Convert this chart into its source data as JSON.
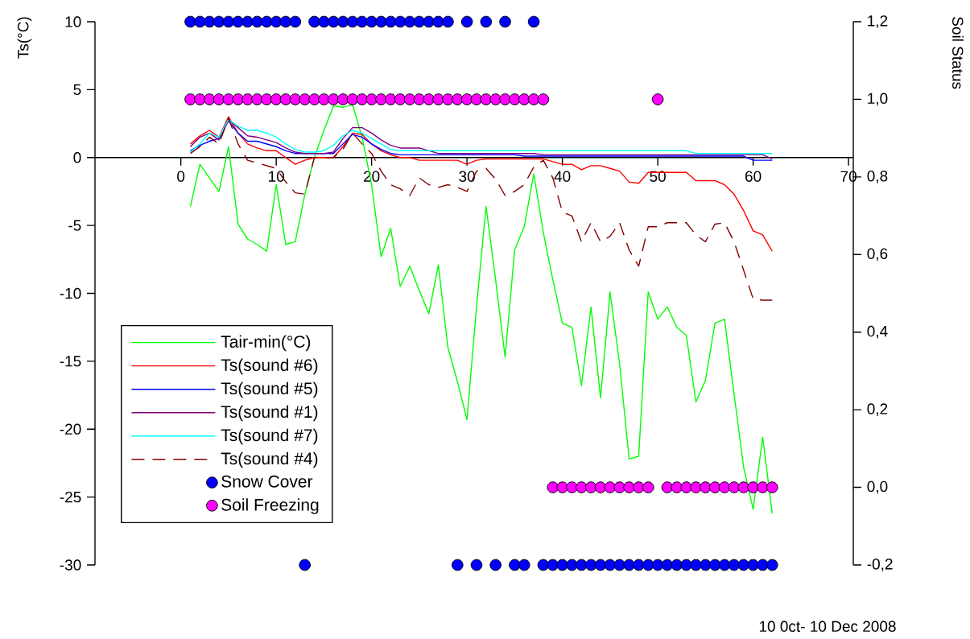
{
  "chart_data": {
    "type": "line",
    "ylabel": "Ts(°C)",
    "y2label": "Soil Status",
    "annotations": [
      "10 0ct- 10 Dec 2008"
    ],
    "x": [
      1,
      2,
      3,
      4,
      5,
      6,
      7,
      8,
      9,
      10,
      11,
      12,
      13,
      14,
      15,
      16,
      17,
      18,
      19,
      20,
      21,
      22,
      23,
      24,
      25,
      26,
      27,
      28,
      29,
      30,
      31,
      32,
      33,
      34,
      35,
      36,
      37,
      38,
      39,
      40,
      41,
      42,
      43,
      44,
      45,
      46,
      47,
      48,
      49,
      50,
      51,
      52,
      53,
      54,
      55,
      56,
      57,
      58,
      59,
      60,
      61,
      62
    ],
    "xlim": [
      -9,
      70.5
    ],
    "xticks": [
      0,
      10,
      20,
      30,
      40,
      50,
      60,
      70
    ],
    "ylim": [
      -30,
      10
    ],
    "yticks": [
      -30,
      -25,
      -20,
      -15,
      -10,
      -5,
      0,
      5,
      10
    ],
    "y2lim": [
      -0.2,
      1.2
    ],
    "y2ticks": [
      {
        "value": -0.2,
        "label": "-0,2"
      },
      {
        "value": 0,
        "label": "0,0"
      },
      {
        "value": 0.2,
        "label": "0,2"
      },
      {
        "value": 0.4,
        "label": "0,4"
      },
      {
        "value": 0.6,
        "label": "0,6"
      },
      {
        "value": 0.8,
        "label": "0,8"
      },
      {
        "value": 1.0,
        "label": "1,0"
      },
      {
        "value": 1.2,
        "label": "1,2"
      }
    ],
    "legend": "bottom left",
    "series": [
      {
        "name": "Tair-min(°C)",
        "color": "#00ff00",
        "line_style": "solid",
        "values": [
          -3.6,
          -0.5,
          -1.5,
          -2.5,
          0.8,
          -4.9,
          -6.0,
          -6.4,
          -6.9,
          -2,
          -6.4,
          -6.2,
          -2.7,
          0,
          2,
          3.8,
          3.7,
          3.9,
          1.5,
          -2,
          -7.3,
          -5.2,
          -9.5,
          -8.0,
          -9.8,
          -11.5,
          -7.9,
          -14,
          -16.5,
          -19.3,
          -11,
          -3.6,
          -9,
          -14.7,
          -6.8,
          -5.1,
          -1.2,
          -5.5,
          -9,
          -12.2,
          -12.5,
          -16.8,
          -11,
          -17.7,
          -9.9,
          -15.2,
          -22.2,
          -22,
          -9.9,
          -11.9,
          -11,
          -12.5,
          -13.1,
          -18,
          -16.4,
          -12.2,
          -11.9,
          -17.4,
          -22.8,
          -25.9,
          -20.6,
          -26.2
        ]
      },
      {
        "name": "Ts(sound #6)",
        "color": "#ff0000",
        "line_style": "solid",
        "values": [
          1.0,
          1.6,
          2.0,
          1.5,
          3.0,
          1.8,
          1.0,
          0.7,
          0.5,
          0.5,
          0.0,
          -0.5,
          -0.2,
          0.0,
          0.0,
          0.0,
          0.8,
          1.8,
          1.7,
          1.0,
          0.5,
          0.2,
          0.0,
          0.0,
          -0.2,
          -0.2,
          -0.2,
          -0.2,
          -0.2,
          -0.5,
          -0.2,
          -0.1,
          -0.1,
          -0.1,
          -0.1,
          -0.1,
          -0.1,
          -0.1,
          -0.3,
          -0.5,
          -0.5,
          -0.9,
          -0.6,
          -0.6,
          -0.8,
          -1.0,
          -1.8,
          -1.9,
          -1.1,
          -1.1,
          -1.1,
          -1.1,
          -1.1,
          -1.7,
          -1.7,
          -1.7,
          -2.0,
          -2.7,
          -3.9,
          -5.4,
          -5.7,
          -6.9
        ]
      },
      {
        "name": "Ts(sound #5)",
        "color": "#0000ff",
        "line_style": "solid",
        "values": [
          0.5,
          0.9,
          1.2,
          1.4,
          2.7,
          1.8,
          1.2,
          1.2,
          1.0,
          0.8,
          0.5,
          0.3,
          0.3,
          0.3,
          0.3,
          0.3,
          1.0,
          1.7,
          1.5,
          1.0,
          0.6,
          0.3,
          0.2,
          0.2,
          0.2,
          0.2,
          0.2,
          0.2,
          0.2,
          0.2,
          0.2,
          0.2,
          0.2,
          0.2,
          0.2,
          0.1,
          0.1,
          0.1,
          0.1,
          0.1,
          0.1,
          0.1,
          0.1,
          0.1,
          0.1,
          0.1,
          0.1,
          0.1,
          0.1,
          0.1,
          0.1,
          0.1,
          0.1,
          0.1,
          0.1,
          0.1,
          0.1,
          0.1,
          0.1,
          -0.2,
          -0.2,
          -0.2
        ]
      },
      {
        "name": "Ts(sound #1)",
        "color": "#800080",
        "line_style": "solid",
        "values": [
          0.8,
          1.5,
          1.8,
          1.3,
          2.8,
          2.2,
          1.6,
          1.5,
          1.3,
          1.1,
          0.7,
          0.4,
          0.3,
          0.3,
          0.3,
          0.4,
          1.4,
          2.2,
          2.2,
          1.8,
          1.3,
          0.9,
          0.7,
          0.7,
          0.7,
          0.5,
          0.3,
          0.3,
          0.3,
          0.3,
          0.3,
          0.3,
          0.3,
          0.3,
          0.3,
          0.3,
          0.3,
          0.2,
          0.2,
          0.2,
          0.2,
          0.2,
          0.2,
          0.2,
          0.2,
          0.2,
          0.2,
          0.2,
          0.2,
          0.2,
          0.2,
          0.2,
          0.2,
          0.2,
          0.2,
          0.2,
          0.2,
          0.2,
          0.2,
          0.2,
          0.2,
          -0.1
        ]
      },
      {
        "name": "Ts(sound #7)",
        "color": "#00ffff",
        "line_style": "solid",
        "values": [
          0.4,
          1.0,
          1.8,
          1.5,
          2.8,
          2.3,
          2.0,
          2.0,
          1.8,
          1.5,
          1.0,
          0.6,
          0.4,
          0.4,
          0.5,
          0.9,
          1.6,
          2.0,
          1.8,
          1.4,
          1.0,
          0.6,
          0.5,
          0.5,
          0.5,
          0.5,
          0.5,
          0.5,
          0.5,
          0.5,
          0.5,
          0.5,
          0.5,
          0.5,
          0.5,
          0.5,
          0.5,
          0.5,
          0.5,
          0.5,
          0.5,
          0.5,
          0.5,
          0.5,
          0.5,
          0.5,
          0.5,
          0.5,
          0.5,
          0.5,
          0.5,
          0.5,
          0.5,
          0.3,
          0.3,
          0.3,
          0.3,
          0.3,
          0.3,
          0.3,
          0.3,
          0.3
        ]
      },
      {
        "name": "Ts(sound #4)",
        "color": "#800000",
        "line_style": "dashed",
        "values": [
          0.3,
          0.8,
          1.5,
          1.0,
          2.9,
          1.0,
          -0.2,
          -0.4,
          -0.6,
          -0.8,
          -1.8,
          -2.6,
          -2.7,
          0.0,
          0.0,
          0.0,
          0.6,
          1.8,
          1.0,
          0.3,
          -1.0,
          -2.0,
          -2.3,
          -2.8,
          -1.5,
          -2.0,
          -2.2,
          -2.0,
          -2.2,
          -2.5,
          -1.0,
          -0.8,
          -1.6,
          -2.8,
          -2.5,
          -2.0,
          -0.7,
          -0.2,
          -1.5,
          -4.0,
          -4.3,
          -6.2,
          -4.8,
          -6.2,
          -5.8,
          -4.8,
          -6.8,
          -8.0,
          -5.1,
          -5.1,
          -4.8,
          -4.8,
          -4.8,
          -5.7,
          -6.2,
          -4.9,
          -4.8,
          -6.2,
          -8.3,
          -10.4,
          -10.5,
          -10.5
        ]
      },
      {
        "name": "Snow Cover",
        "type": "scatter",
        "axis": "y2",
        "marker": "circle",
        "color": "#0000ff",
        "values": [
          1.2,
          1.2,
          1.2,
          1.2,
          1.2,
          1.2,
          1.2,
          1.2,
          1.2,
          1.2,
          1.2,
          1.2,
          -0.2,
          1.2,
          1.2,
          1.2,
          1.2,
          1.2,
          1.2,
          1.2,
          1.2,
          1.2,
          1.2,
          1.2,
          1.2,
          1.2,
          1.2,
          1.2,
          -0.2,
          1.2,
          -0.2,
          1.2,
          -0.2,
          1.2,
          -0.2,
          -0.2,
          1.2,
          -0.2,
          -0.2,
          -0.2,
          -0.2,
          -0.2,
          -0.2,
          -0.2,
          -0.2,
          -0.2,
          -0.2,
          -0.2,
          -0.2,
          -0.2,
          -0.2,
          -0.2,
          -0.2,
          -0.2,
          -0.2,
          -0.2,
          -0.2,
          -0.2,
          -0.2,
          -0.2,
          -0.2,
          -0.2
        ]
      },
      {
        "name": "Soil Freezing",
        "type": "scatter",
        "axis": "y2",
        "marker": "circle",
        "color": "#ff00ff",
        "values": [
          1,
          1,
          1,
          1,
          1,
          1,
          1,
          1,
          1,
          1,
          1,
          1,
          1,
          1,
          1,
          1,
          1,
          1,
          1,
          1,
          1,
          1,
          1,
          1,
          1,
          1,
          1,
          1,
          1,
          1,
          1,
          1,
          1,
          1,
          1,
          1,
          1,
          1,
          0,
          0,
          0,
          0,
          0,
          0,
          0,
          0,
          0,
          0,
          0,
          1,
          0,
          0,
          0,
          0,
          0,
          0,
          0,
          0,
          0,
          0,
          0,
          0
        ]
      }
    ]
  }
}
